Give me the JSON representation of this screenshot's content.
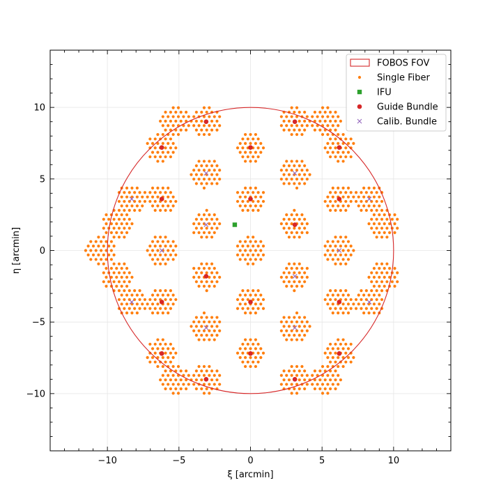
{
  "chart_data": {
    "type": "scatter",
    "xlabel": "ξ [arcmin]",
    "ylabel": "η [arcmin]",
    "xlim": [
      -14,
      14
    ],
    "ylim": [
      -14,
      14
    ],
    "xticks": [
      -10,
      -5,
      0,
      5,
      10
    ],
    "yticks": [
      -10,
      -5,
      0,
      5,
      10
    ],
    "xtick_labels": [
      "−10",
      "−5",
      "0",
      "5",
      "10"
    ],
    "ytick_labels": [
      "−10",
      "−5",
      "0",
      "5",
      "10"
    ],
    "grid": true,
    "legend_position": "top-right",
    "fov": {
      "name": "FOBOS FOV",
      "center": [
        0,
        0
      ],
      "radius": 10,
      "color": "#d62728"
    },
    "single_fiber": {
      "name": "Single Fiber",
      "color": "#ff7f0e",
      "pitch": 0.36,
      "field_radius": 10.0,
      "module_centers": [
        [
          0,
          0
        ],
        [
          3.1,
          1.8
        ],
        [
          3.1,
          -1.8
        ],
        [
          0,
          3.6
        ],
        [
          0,
          -3.6
        ],
        [
          -3.1,
          1.8
        ],
        [
          -3.1,
          -1.8
        ],
        [
          6.2,
          0
        ],
        [
          -6.2,
          0
        ],
        [
          6.2,
          3.6
        ],
        [
          6.2,
          -3.6
        ],
        [
          -6.2,
          3.6
        ],
        [
          -6.2,
          -3.6
        ],
        [
          3.1,
          5.4
        ],
        [
          -3.1,
          5.4
        ],
        [
          3.1,
          -5.4
        ],
        [
          -3.1,
          -5.4
        ],
        [
          0,
          7.2
        ],
        [
          0,
          -7.2
        ],
        [
          9.3,
          1.8
        ],
        [
          9.3,
          -1.8
        ],
        [
          -9.3,
          1.8
        ],
        [
          -9.3,
          -1.8
        ],
        [
          6.2,
          7.2
        ],
        [
          -6.2,
          7.2
        ],
        [
          6.2,
          -7.2
        ],
        [
          -6.2,
          -7.2
        ],
        [
          3.1,
          9.0
        ],
        [
          -3.1,
          9.0
        ],
        [
          3.1,
          -9.0
        ],
        [
          -3.1,
          -9.0
        ],
        [
          8.3,
          3.6
        ],
        [
          -8.3,
          3.6
        ],
        [
          8.3,
          -3.6
        ],
        [
          -8.3,
          -3.6
        ],
        [
          5.3,
          9.0
        ],
        [
          -5.3,
          9.0
        ],
        [
          5.3,
          -9.0
        ],
        [
          -5.3,
          -9.0
        ],
        [
          -10.5,
          0
        ]
      ],
      "module_radius": 1.05
    },
    "ifu": {
      "name": "IFU",
      "color": "#2ca02c",
      "points": [
        [
          -1.1,
          1.8
        ]
      ]
    },
    "guide_bundle": {
      "name": "Guide Bundle",
      "color": "#d62728",
      "points": [
        [
          -3.1,
          9.0
        ],
        [
          3.1,
          9.0
        ],
        [
          -6.2,
          7.2
        ],
        [
          0,
          7.2
        ],
        [
          6.2,
          7.2
        ],
        [
          -6.2,
          3.6
        ],
        [
          0,
          3.6
        ],
        [
          6.2,
          3.6
        ],
        [
          3.1,
          1.8
        ],
        [
          -3.1,
          -1.8
        ],
        [
          -6.2,
          -3.6
        ],
        [
          0,
          -3.6
        ],
        [
          6.2,
          -3.6
        ],
        [
          -6.2,
          -7.2
        ],
        [
          0,
          -7.2
        ],
        [
          6.2,
          -7.2
        ],
        [
          -3.1,
          -9.0
        ],
        [
          3.1,
          -9.0
        ]
      ]
    },
    "calib_bundle": {
      "name": "Calib. Bundle",
      "color": "#9467bd",
      "points": [
        [
          -3.1,
          5.4
        ],
        [
          3.1,
          5.4
        ],
        [
          -8.3,
          3.6
        ],
        [
          8.3,
          3.6
        ],
        [
          -3.1,
          1.8
        ],
        [
          -6.2,
          0
        ],
        [
          6.2,
          0
        ],
        [
          3.1,
          -1.8
        ],
        [
          -8.3,
          -3.6
        ],
        [
          8.3,
          -3.6
        ],
        [
          -3.1,
          -5.4
        ],
        [
          3.1,
          -5.4
        ]
      ]
    },
    "legend": [
      {
        "key": "fov",
        "label": "FOBOS FOV"
      },
      {
        "key": "single_fiber",
        "label": "Single Fiber"
      },
      {
        "key": "ifu",
        "label": "IFU"
      },
      {
        "key": "guide_bundle",
        "label": "Guide Bundle"
      },
      {
        "key": "calib_bundle",
        "label": "Calib. Bundle"
      }
    ]
  }
}
